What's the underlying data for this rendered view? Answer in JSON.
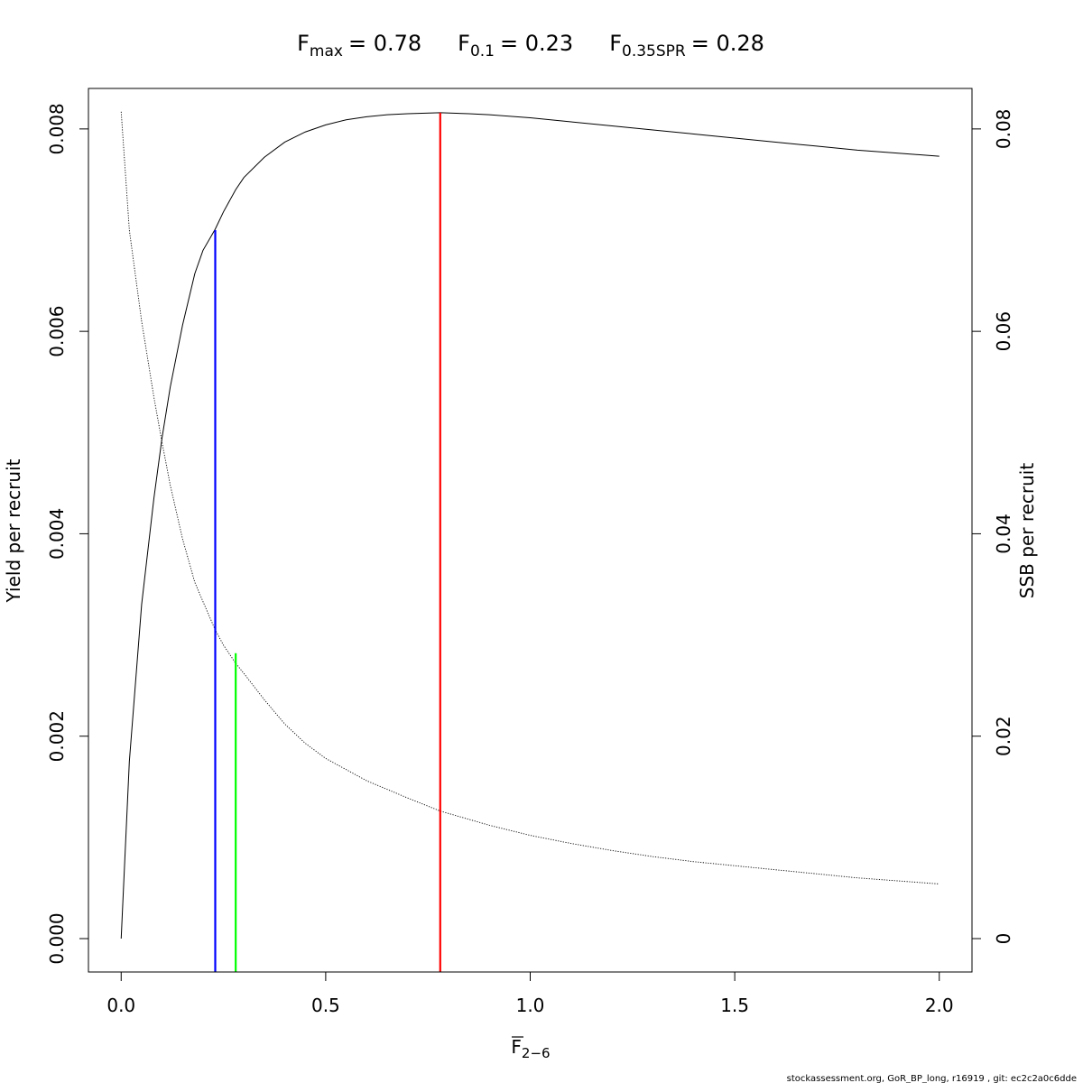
{
  "chart_data": {
    "type": "line",
    "title": {
      "fmax": {
        "base": "F",
        "sub": "max",
        "value": "= 0.78"
      },
      "f01": {
        "base": "F",
        "sub": "0.1",
        "value": "= 0.23"
      },
      "fspr": {
        "base": "F",
        "sub": "0.35SPR",
        "value": "= 0.28"
      }
    },
    "xlabel": {
      "base": "F",
      "sub": "2−6"
    },
    "ylabel_left": "Yield per recruit",
    "ylabel_right": "SSB per recruit",
    "footer": "stockassessment.org, GoR_BP_long, r16919 , git: ec2c2a0c6dde",
    "xlim": [
      -0.08,
      2.08
    ],
    "ylim_left": [
      -0.00033,
      0.0084
    ],
    "ylim_right": [
      -0.0033,
      0.084
    ],
    "x_ticks": [
      0,
      0.5,
      1,
      1.5,
      2
    ],
    "x_tick_labels": [
      "0.0",
      "0.5",
      "1.0",
      "1.5",
      "2.0"
    ],
    "y_ticks_left": [
      0,
      0.002,
      0.004,
      0.006,
      0.008
    ],
    "y_tick_labels_left": [
      "0.000",
      "0.002",
      "0.004",
      "0.006",
      "0.008"
    ],
    "y_ticks_right": [
      0,
      0.02,
      0.04,
      0.06,
      0.08
    ],
    "y_tick_labels_right": [
      "0",
      "0.02",
      "0.04",
      "0.06",
      "0.08"
    ],
    "grid": false,
    "series": [
      {
        "axis": "left",
        "style": "solid",
        "x": [
          0,
          0.02,
          0.05,
          0.08,
          0.1,
          0.12,
          0.15,
          0.18,
          0.2,
          0.23,
          0.25,
          0.28,
          0.3,
          0.35,
          0.4,
          0.45,
          0.5,
          0.55,
          0.6,
          0.65,
          0.7,
          0.78,
          0.85,
          0.9,
          1.0,
          1.1,
          1.2,
          1.3,
          1.4,
          1.5,
          1.6,
          1.7,
          1.8,
          1.9,
          2.0
        ],
        "values": [
          0,
          0.00175,
          0.0033,
          0.00435,
          0.00495,
          0.00545,
          0.00606,
          0.00657,
          0.0068,
          0.00701,
          0.00718,
          0.0074,
          0.00752,
          0.00772,
          0.00787,
          0.00797,
          0.00804,
          0.00809,
          0.00812,
          0.00814,
          0.00815,
          0.00816,
          0.00815,
          0.00814,
          0.00811,
          0.00807,
          0.00803,
          0.00799,
          0.00795,
          0.00791,
          0.00787,
          0.00783,
          0.00779,
          0.00776,
          0.00773
        ]
      },
      {
        "axis": "right",
        "style": "dotted",
        "x": [
          0,
          0.02,
          0.05,
          0.08,
          0.1,
          0.12,
          0.15,
          0.18,
          0.2,
          0.23,
          0.25,
          0.28,
          0.3,
          0.35,
          0.4,
          0.45,
          0.5,
          0.6,
          0.7,
          0.78,
          0.9,
          1.0,
          1.1,
          1.2,
          1.3,
          1.4,
          1.5,
          1.6,
          1.7,
          1.8,
          1.9,
          2.0
        ],
        "values": [
          0.0817,
          0.07,
          0.061,
          0.0535,
          0.049,
          0.0448,
          0.0395,
          0.0352,
          0.0333,
          0.0305,
          0.029,
          0.0272,
          0.0262,
          0.0236,
          0.0212,
          0.0193,
          0.0178,
          0.0156,
          0.0139,
          0.0126,
          0.0112,
          0.0102,
          0.0094,
          0.0087,
          0.0081,
          0.0076,
          0.0072,
          0.0068,
          0.0064,
          0.006,
          0.0057,
          0.0054
        ]
      }
    ],
    "reference_lines": [
      {
        "x": 0.23,
        "y_top": 0.007,
        "color": "#0000ff"
      },
      {
        "x": 0.28,
        "y_top": 0.00282,
        "color": "#00ff00"
      },
      {
        "x": 0.78,
        "y_top": 0.00816,
        "color": "#ff0000"
      }
    ]
  }
}
